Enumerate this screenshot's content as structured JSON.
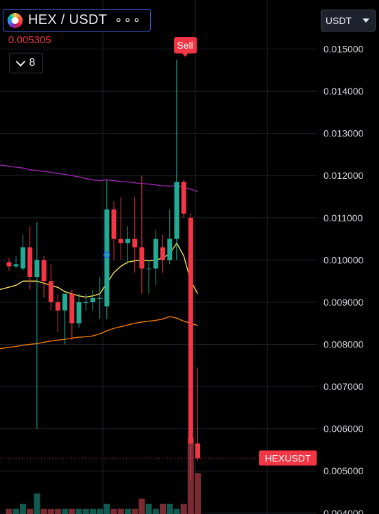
{
  "header": {
    "pair_title": "HEX / USDT",
    "more_icon": "ellipsis-icon",
    "coin_icon": "hex-coin-icon",
    "last_price": "0.005305",
    "interval_label": "8",
    "quote_selector": "USDT"
  },
  "colors": {
    "background": "#000000",
    "up": "#22ab94",
    "down": "#f23645",
    "ma_purple": "#9c27b0",
    "ma_yellow": "#f7e259",
    "ma_orange": "#f57c00",
    "grid": "#1e222d",
    "axis_text": "#d1d4dc"
  },
  "chart_data": {
    "type": "candlestick",
    "symbol": "HEXUSDT",
    "ylim": [
      0.00398,
      0.01535
    ],
    "y_ticks": [
      "0.015000",
      "0.014000",
      "0.013000",
      "0.012000",
      "0.011000",
      "0.010000",
      "0.009000",
      "0.008000",
      "0.007000",
      "0.006000",
      "0.005000",
      "0.004000"
    ],
    "last_price_label": "HEXUSDT",
    "last_price": 0.005305,
    "sell_marker": {
      "label": "Sell",
      "candle_index": 25
    },
    "candles": [
      {
        "o": 0.00995,
        "h": 0.01005,
        "l": 0.00975,
        "c": 0.00985
      },
      {
        "o": 0.00985,
        "h": 0.0101,
        "l": 0.0098,
        "c": 0.0099
      },
      {
        "o": 0.0098,
        "h": 0.0106,
        "l": 0.00975,
        "c": 0.0103
      },
      {
        "o": 0.0103,
        "h": 0.0108,
        "l": 0.0093,
        "c": 0.0096
      },
      {
        "o": 0.0096,
        "h": 0.0109,
        "l": 0.006,
        "c": 0.01
      },
      {
        "o": 0.01,
        "h": 0.0101,
        "l": 0.0091,
        "c": 0.0095
      },
      {
        "o": 0.0095,
        "h": 0.0099,
        "l": 0.0088,
        "c": 0.009
      },
      {
        "o": 0.009,
        "h": 0.0092,
        "l": 0.0083,
        "c": 0.0088
      },
      {
        "o": 0.0088,
        "h": 0.0092,
        "l": 0.008,
        "c": 0.0092
      },
      {
        "o": 0.0092,
        "h": 0.0093,
        "l": 0.0081,
        "c": 0.0085
      },
      {
        "o": 0.0085,
        "h": 0.0092,
        "l": 0.0084,
        "c": 0.009
      },
      {
        "o": 0.009,
        "h": 0.0092,
        "l": 0.0088,
        "c": 0.009
      },
      {
        "o": 0.009,
        "h": 0.0093,
        "l": 0.0088,
        "c": 0.0091
      },
      {
        "o": 0.0091,
        "h": 0.0096,
        "l": 0.0086,
        "c": 0.0091
      },
      {
        "o": 0.0089,
        "h": 0.0119,
        "l": 0.0086,
        "c": 0.0112
      },
      {
        "o": 0.0112,
        "h": 0.0114,
        "l": 0.01,
        "c": 0.0105
      },
      {
        "o": 0.0105,
        "h": 0.0115,
        "l": 0.01,
        "c": 0.0104
      },
      {
        "o": 0.0104,
        "h": 0.0108,
        "l": 0.0099,
        "c": 0.0105
      },
      {
        "o": 0.0105,
        "h": 0.0115,
        "l": 0.0097,
        "c": 0.0103
      },
      {
        "o": 0.0103,
        "h": 0.012,
        "l": 0.0092,
        "c": 0.0098
      },
      {
        "o": 0.0098,
        "h": 0.01,
        "l": 0.0092,
        "c": 0.0098
      },
      {
        "o": 0.0098,
        "h": 0.0107,
        "l": 0.0094,
        "c": 0.0105
      },
      {
        "o": 0.0103,
        "h": 0.0106,
        "l": 0.0097,
        "c": 0.01
      },
      {
        "o": 0.01,
        "h": 0.0112,
        "l": 0.0099,
        "c": 0.0105
      },
      {
        "o": 0.0105,
        "h": 0.01475,
        "l": 0.01,
        "c": 0.01185
      },
      {
        "o": 0.01185,
        "h": 0.0119,
        "l": 0.011,
        "c": 0.0111
      },
      {
        "o": 0.011,
        "h": 0.0111,
        "l": 0.0048,
        "c": 0.00565
      },
      {
        "o": 0.00565,
        "h": 0.00745,
        "l": 0.00525,
        "c": 0.0053
      }
    ],
    "volumes": [
      1,
      1,
      2,
      1,
      4,
      1,
      1,
      1,
      1,
      1,
      1,
      1,
      1,
      1,
      2,
      1,
      1,
      1,
      1,
      3,
      2,
      1,
      2,
      2,
      1,
      2,
      15,
      8
    ],
    "ma_purple": [
      0.01225,
      0.0122,
      0.01218,
      0.01214,
      0.01212,
      0.0121,
      0.01208,
      0.01205,
      0.01203,
      0.012,
      0.01197,
      0.01193,
      0.0119,
      0.01188,
      0.0119,
      0.01188,
      0.01186,
      0.01185,
      0.01183,
      0.01181,
      0.0118,
      0.01178,
      0.01176,
      0.01175,
      0.01176,
      0.01172,
      0.01168,
      0.01162
    ],
    "ma_yellow": [
      0.0093,
      0.0094,
      0.0095,
      0.0095,
      0.0095,
      0.00945,
      0.0094,
      0.00935,
      0.00925,
      0.0092,
      0.00915,
      0.00912,
      0.00915,
      0.0092,
      0.00945,
      0.0097,
      0.00985,
      0.00995,
      0.00998,
      0.01,
      0.00998,
      0.01,
      0.01005,
      0.01015,
      0.0104,
      0.0101,
      0.0095,
      0.0092
    ],
    "ma_orange": [
      0.0079,
      0.00795,
      0.00798,
      0.008,
      0.00802,
      0.00805,
      0.00808,
      0.0081,
      0.00812,
      0.00815,
      0.00817,
      0.00818,
      0.0082,
      0.00825,
      0.00832,
      0.00838,
      0.00842,
      0.00846,
      0.0085,
      0.00853,
      0.00855,
      0.00857,
      0.0086,
      0.00866,
      0.00862,
      0.00855,
      0.0085,
      0.00845
    ]
  }
}
